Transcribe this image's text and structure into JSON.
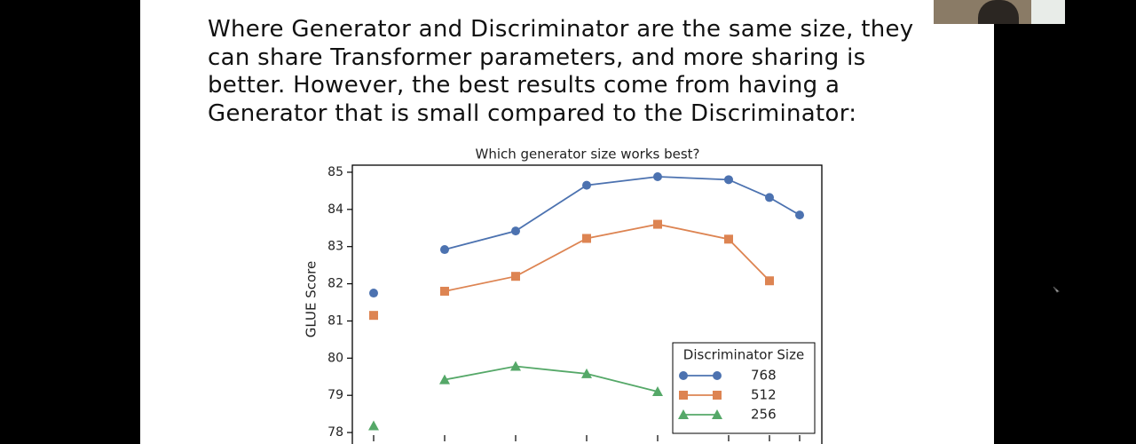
{
  "slide": {
    "lines": [
      "Where Generator and Discriminator are the same size, they",
      "can share Transformer parameters, and more sharing is",
      "better. However, the best results come from having a",
      "Generator that is small compared to the Discriminator:"
    ]
  },
  "chart_data": {
    "type": "line",
    "title": "Which generator size works best?",
    "y_label": "GLUE Score",
    "categories": [
      null,
      null,
      null,
      null,
      null,
      null,
      null,
      null
    ],
    "legend_title": "Discriminator Size",
    "legend": "lower right",
    "series": [
      {
        "name": "768",
        "color": "#4c72b0",
        "marker": "circle",
        "values": [
          81.75,
          82.92,
          83.42,
          84.65,
          84.88,
          84.8,
          84.32,
          83.85
        ]
      },
      {
        "name": "512",
        "color": "#dd8452",
        "marker": "square",
        "values": [
          81.15,
          81.8,
          82.2,
          83.22,
          83.6,
          83.2,
          82.08,
          null
        ]
      },
      {
        "name": "256",
        "color": "#55a868",
        "marker": "triangle",
        "values": [
          78.18,
          79.42,
          79.78,
          79.58,
          79.1,
          null,
          null,
          null
        ]
      }
    ],
    "ylim": [
      77.93,
      85.19
    ],
    "yticks": [
      78,
      79,
      80,
      81,
      82,
      83,
      84,
      85
    ]
  }
}
